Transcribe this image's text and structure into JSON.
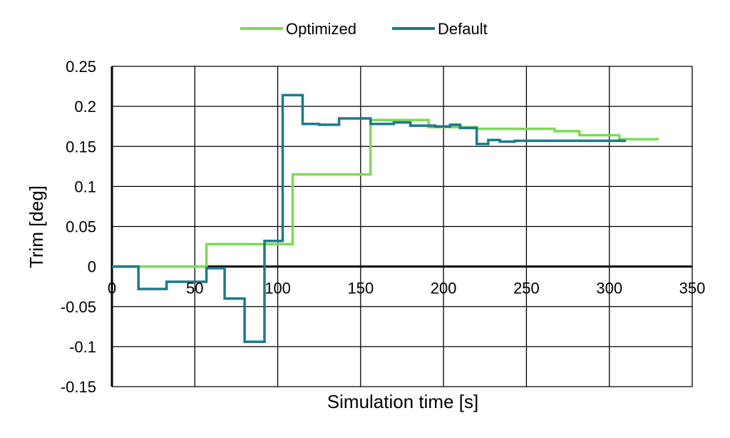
{
  "chart_data": {
    "type": "line",
    "step": true,
    "xlabel": "Simulation time [s]",
    "ylabel": "Trim [deg]",
    "xlim": [
      0,
      350
    ],
    "ylim": [
      -0.15,
      0.25
    ],
    "x_ticks": [
      0,
      50,
      100,
      150,
      200,
      250,
      300,
      350
    ],
    "x_tick_labels": [
      "0",
      "50",
      "100",
      "150",
      "200",
      "250",
      "300",
      "350"
    ],
    "y_ticks": [
      0.25,
      0.2,
      0.15,
      0.1,
      0.05,
      0,
      -0.05,
      -0.1,
      -0.15
    ],
    "y_tick_labels": [
      "0.25",
      "0.2",
      "0.15",
      "0.1",
      "0.05",
      "0",
      "-0.05",
      "-0.1",
      "-0.15"
    ],
    "grid": true,
    "legend_position": "top-center",
    "series": [
      {
        "name": "Optimized",
        "color": "#7ed957",
        "points": [
          [
            0,
            0
          ],
          [
            57,
            0
          ],
          [
            57,
            0.028
          ],
          [
            109,
            0.028
          ],
          [
            109,
            0.115
          ],
          [
            156,
            0.115
          ],
          [
            156,
            0.183
          ],
          [
            191,
            0.183
          ],
          [
            191,
            0.174
          ],
          [
            220,
            0.174
          ],
          [
            220,
            0.172
          ],
          [
            267,
            0.172
          ],
          [
            267,
            0.169
          ],
          [
            282,
            0.169
          ],
          [
            282,
            0.164
          ],
          [
            306,
            0.164
          ],
          [
            306,
            0.159
          ],
          [
            330,
            0.159
          ]
        ]
      },
      {
        "name": "Default",
        "color": "#1a7a8c",
        "points": [
          [
            0,
            0
          ],
          [
            16,
            0
          ],
          [
            16,
            -0.028
          ],
          [
            33,
            -0.028
          ],
          [
            33,
            -0.019
          ],
          [
            57,
            -0.019
          ],
          [
            57,
            -0.002
          ],
          [
            68,
            -0.002
          ],
          [
            68,
            -0.04
          ],
          [
            80,
            -0.04
          ],
          [
            80,
            -0.094
          ],
          [
            92,
            -0.094
          ],
          [
            92,
            0.032
          ],
          [
            103,
            0.032
          ],
          [
            103,
            0.214
          ],
          [
            115,
            0.214
          ],
          [
            115,
            0.178
          ],
          [
            125,
            0.178
          ],
          [
            125,
            0.177
          ],
          [
            137,
            0.177
          ],
          [
            137,
            0.185
          ],
          [
            156,
            0.185
          ],
          [
            156,
            0.178
          ],
          [
            170,
            0.178
          ],
          [
            170,
            0.18
          ],
          [
            180,
            0.18
          ],
          [
            180,
            0.176
          ],
          [
            195,
            0.176
          ],
          [
            195,
            0.175
          ],
          [
            204,
            0.175
          ],
          [
            204,
            0.177
          ],
          [
            210,
            0.177
          ],
          [
            210,
            0.173
          ],
          [
            220,
            0.173
          ],
          [
            220,
            0.153
          ],
          [
            227,
            0.153
          ],
          [
            227,
            0.158
          ],
          [
            234,
            0.158
          ],
          [
            234,
            0.156
          ],
          [
            243,
            0.156
          ],
          [
            243,
            0.157
          ],
          [
            310,
            0.157
          ]
        ]
      }
    ]
  }
}
